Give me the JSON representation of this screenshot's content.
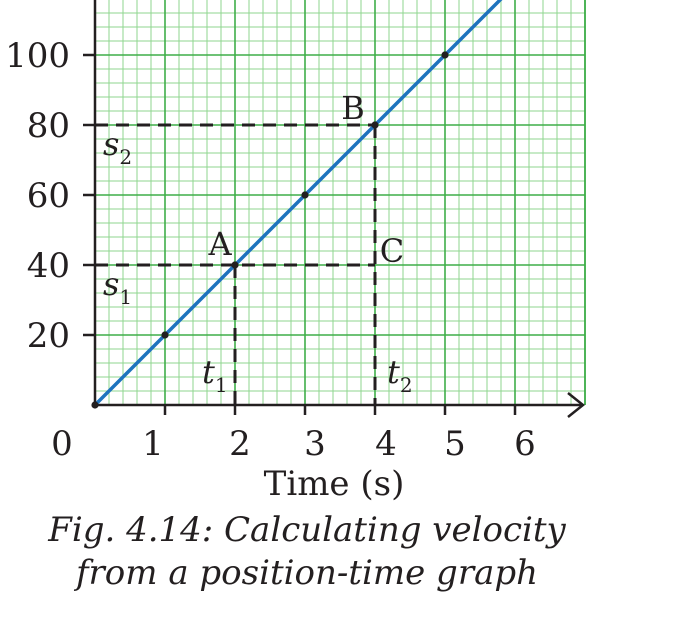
{
  "chart_data": {
    "type": "line",
    "title": "",
    "xlabel": "Time (s)",
    "ylabel": "",
    "xlim": [
      0,
      7
    ],
    "ylim": [
      0,
      115
    ],
    "x_ticks": [
      1,
      2,
      3,
      4,
      5,
      6
    ],
    "y_ticks": [
      20,
      40,
      60,
      80,
      100
    ],
    "origin_label": "0",
    "grid": true,
    "series": [
      {
        "points": [
          [
            0,
            0
          ],
          [
            1,
            20
          ],
          [
            2,
            40
          ],
          [
            3,
            60
          ],
          [
            4,
            80
          ],
          [
            5,
            100
          ]
        ],
        "line_extends_to": [
          5.8,
          116
        ],
        "color": "#1e73be"
      }
    ],
    "annotations": {
      "points": [
        {
          "label": "A",
          "x": 2,
          "y": 40
        },
        {
          "label": "B",
          "x": 4,
          "y": 80
        },
        {
          "label": "C",
          "x": 4,
          "y": 40
        }
      ],
      "position_labels": [
        {
          "label": "s",
          "sub": "1",
          "value": 40
        },
        {
          "label": "s",
          "sub": "2",
          "value": 80
        }
      ],
      "time_labels": [
        {
          "label": "t",
          "sub": "1",
          "value": 2
        },
        {
          "label": "t",
          "sub": "2",
          "value": 4
        }
      ]
    }
  },
  "caption": {
    "line1": "Fig. 4.14: Calculating velocity",
    "line2": "from a position-time graph"
  },
  "colors": {
    "grid_minor": "#8fd68f",
    "grid_major": "#3fae49",
    "line": "#1e73be",
    "axis": "#231f20",
    "dash": "#231f20"
  }
}
